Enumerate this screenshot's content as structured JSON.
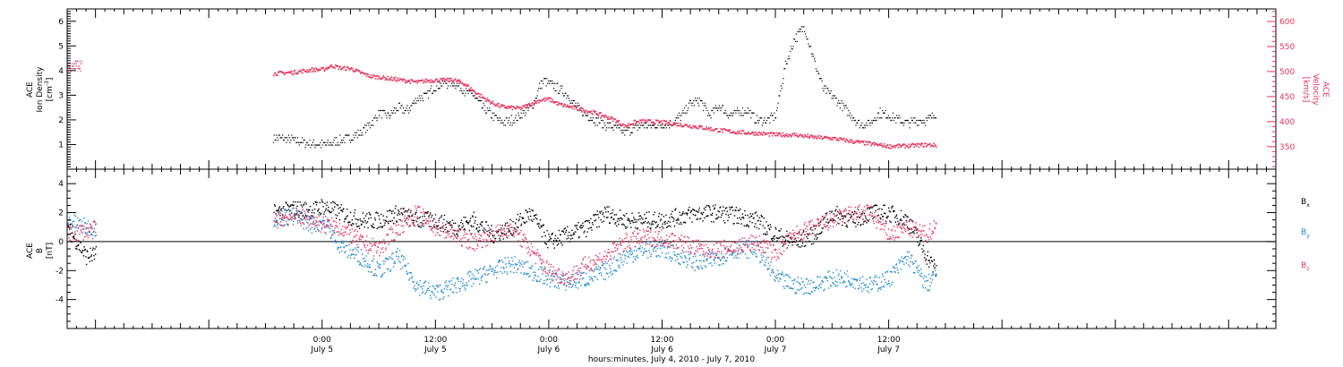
{
  "chart_data": [
    {
      "type": "scatter",
      "panel": "top",
      "xlabel": "hours:minutes, July  4, 2010 - July  7, 2010",
      "x_range_hours_from_july5_0000": [
        -27,
        101
      ],
      "tick_labels": [
        {
          "time": "0:00",
          "date": "July 5",
          "hour": 0
        },
        {
          "time": "12:00",
          "date": "July 5",
          "hour": 12
        },
        {
          "time": "0:00",
          "date": "July 6",
          "hour": 24
        },
        {
          "time": "12:00",
          "date": "July 6",
          "hour": 36
        },
        {
          "time": "0:00",
          "date": "July 7",
          "hour": 48
        },
        {
          "time": "12:00",
          "date": "July 7",
          "hour": 60
        }
      ],
      "left_axis": {
        "label_line1": "ACE",
        "label_line2": "Ion Density",
        "unit": "[cm",
        "unit_sup": "-3",
        "unit_end": "]",
        "ylim": [
          0,
          6.5
        ],
        "ticks": [
          1,
          2,
          3,
          4,
          5,
          6
        ],
        "color": "#000000"
      },
      "right_axis": {
        "label_line1": "ACE",
        "label_line2": "Velocity",
        "unit": "[km/s]",
        "ylim": [
          305,
          625
        ],
        "ticks": [
          350,
          400,
          450,
          500,
          550,
          600
        ],
        "color": "#e8335e"
      },
      "series": [
        {
          "axis": "left",
          "color": "#000000",
          "hours": [
            -5.2,
            -3,
            -2,
            0,
            1,
            2,
            3,
            4,
            5,
            6,
            7,
            8,
            9,
            10,
            11,
            12,
            13,
            14,
            15,
            16,
            17,
            18,
            19,
            20,
            21,
            22,
            22.5,
            23,
            23.5,
            24,
            25,
            26,
            27,
            28,
            29,
            30,
            31,
            32,
            33,
            34,
            35,
            36,
            37,
            38,
            39,
            40,
            41,
            42,
            43,
            44,
            45,
            46,
            47,
            48,
            49,
            50,
            51,
            52,
            53,
            54,
            55,
            56,
            57,
            58,
            59,
            60,
            61,
            62,
            63,
            64,
            65
          ],
          "values": [
            1.3,
            1.2,
            1.1,
            1.0,
            1.1,
            1.2,
            1.3,
            1.5,
            1.8,
            2.3,
            2.2,
            2.5,
            2.4,
            2.9,
            3.0,
            3.4,
            3.5,
            3.5,
            3.2,
            3.0,
            2.5,
            2.2,
            1.9,
            2.0,
            2.2,
            2.5,
            2.8,
            3.4,
            3.6,
            3.5,
            3.3,
            3.0,
            2.5,
            2.2,
            2.0,
            1.8,
            1.7,
            1.5,
            1.7,
            1.8,
            1.8,
            1.8,
            1.9,
            2.2,
            2.7,
            2.8,
            2.2,
            2.6,
            2.2,
            2.3,
            2.4,
            2.0,
            2.0,
            2.2,
            4.2,
            5.3,
            5.8,
            4.5,
            3.3,
            3.0,
            2.6,
            2.2,
            1.8,
            1.9,
            2.3,
            2.2,
            2.0,
            1.9,
            2.0,
            2.0,
            2.3
          ]
        },
        {
          "axis": "right",
          "color": "#e8335e",
          "hours": [
            -5.2,
            -3,
            -1,
            0,
            1,
            2,
            3,
            4,
            5,
            6,
            8,
            10,
            11,
            12,
            13,
            14,
            15,
            16,
            17,
            18,
            19,
            20,
            21,
            22,
            23,
            24,
            25,
            27,
            29,
            31,
            32,
            33,
            34,
            36,
            38,
            40,
            42,
            44,
            46,
            48,
            50,
            52,
            54,
            56,
            58,
            60,
            62,
            64,
            65
          ],
          "values": [
            497,
            500,
            505,
            505,
            513,
            508,
            507,
            499,
            492,
            490,
            485,
            480,
            483,
            484,
            484,
            484,
            477,
            462,
            449,
            438,
            431,
            429,
            428,
            436,
            444,
            446,
            436,
            427,
            418,
            404,
            392,
            400,
            402,
            400,
            395,
            390,
            384,
            380,
            378,
            375,
            375,
            370,
            368,
            362,
            357,
            352,
            353,
            355,
            354
          ]
        },
        {
          "axis": "left",
          "color": "#e8335e",
          "hours": [
            -27,
            -26.5,
            -26,
            -25.5
          ],
          "values": [
            4.2,
            4.1,
            4.3,
            4.2
          ]
        }
      ]
    },
    {
      "type": "scatter",
      "panel": "bottom",
      "axis": {
        "label_line1": "ACE",
        "label_line2": "B",
        "unit": "[nT]",
        "ylim": [
          -6,
          5
        ],
        "ticks": [
          -4,
          -2,
          0,
          2,
          4
        ],
        "zero_line": true
      },
      "legend": [
        {
          "label": "B",
          "sub": "x",
          "color": "#000000"
        },
        {
          "label": "B",
          "sub": "y",
          "color": "#1e88d2"
        },
        {
          "label": "B",
          "sub": "z",
          "color": "#e8335e"
        }
      ],
      "series": [
        {
          "name": "Bx",
          "color": "#000000",
          "hours": [
            -27,
            -25,
            -5.2,
            -3,
            -1,
            0,
            2,
            4,
            6,
            8,
            10,
            12,
            14,
            16,
            18,
            20,
            22,
            24,
            26,
            28,
            30,
            32,
            34,
            36,
            38,
            40,
            42,
            44,
            46,
            48,
            50,
            52,
            54,
            56,
            58,
            60,
            62,
            64,
            65
          ],
          "values": [
            1.0,
            -1.0,
            2.0,
            2.3,
            2.2,
            2.5,
            2.0,
            1.5,
            1.5,
            2.0,
            1.5,
            1.5,
            1.0,
            1.5,
            0.5,
            1.0,
            2.0,
            0.0,
            0.5,
            1.0,
            2.0,
            1.5,
            1.5,
            1.5,
            1.8,
            2.0,
            2.0,
            1.8,
            1.5,
            0.5,
            0.0,
            0.5,
            2.0,
            1.5,
            2.0,
            2.0,
            1.5,
            -1.0,
            -2.0
          ]
        },
        {
          "name": "By",
          "color": "#1e88d2",
          "hours": [
            -27,
            -25,
            -5.2,
            -3,
            -1,
            0,
            2,
            4,
            6,
            8,
            10,
            12,
            14,
            16,
            18,
            20,
            22,
            24,
            26,
            28,
            30,
            32,
            34,
            36,
            38,
            40,
            42,
            44,
            46,
            48,
            50,
            52,
            54,
            56,
            58,
            60,
            62,
            64,
            65
          ],
          "values": [
            1.5,
            1.0,
            1.6,
            1.8,
            1.2,
            1.5,
            -0.3,
            -1.0,
            -2.0,
            -1.0,
            -3.0,
            -3.5,
            -3.0,
            -2.5,
            -2.0,
            -1.5,
            -2.0,
            -2.5,
            -2.8,
            -2.5,
            -2.0,
            -1.0,
            -0.5,
            -0.5,
            -1.0,
            -1.5,
            -1.0,
            -0.5,
            -0.5,
            -2.5,
            -3.0,
            -3.0,
            -2.5,
            -2.5,
            -3.0,
            -2.5,
            -1.0,
            -3.0,
            -2.0
          ]
        },
        {
          "name": "Bz",
          "color": "#e8335e",
          "hours": [
            -27,
            -25,
            -5.2,
            -3,
            -1,
            0,
            2,
            4,
            6,
            8,
            10,
            12,
            14,
            16,
            18,
            20,
            22,
            24,
            26,
            28,
            30,
            32,
            34,
            36,
            38,
            40,
            42,
            44,
            46,
            48,
            50,
            52,
            54,
            56,
            58,
            60,
            62,
            64,
            65
          ],
          "values": [
            0.5,
            0.8,
            1.5,
            1.8,
            1.5,
            1.2,
            1.0,
            0.0,
            -0.5,
            1.0,
            2.0,
            1.0,
            0.5,
            0.0,
            0.5,
            1.0,
            -0.5,
            -2.0,
            -2.5,
            -1.5,
            -1.0,
            0.0,
            0.3,
            0.3,
            0.0,
            -0.5,
            -0.5,
            -0.3,
            0.0,
            -0.8,
            0.5,
            1.0,
            1.5,
            2.0,
            2.0,
            0.5,
            1.0,
            0.5,
            1.2
          ]
        }
      ]
    }
  ]
}
